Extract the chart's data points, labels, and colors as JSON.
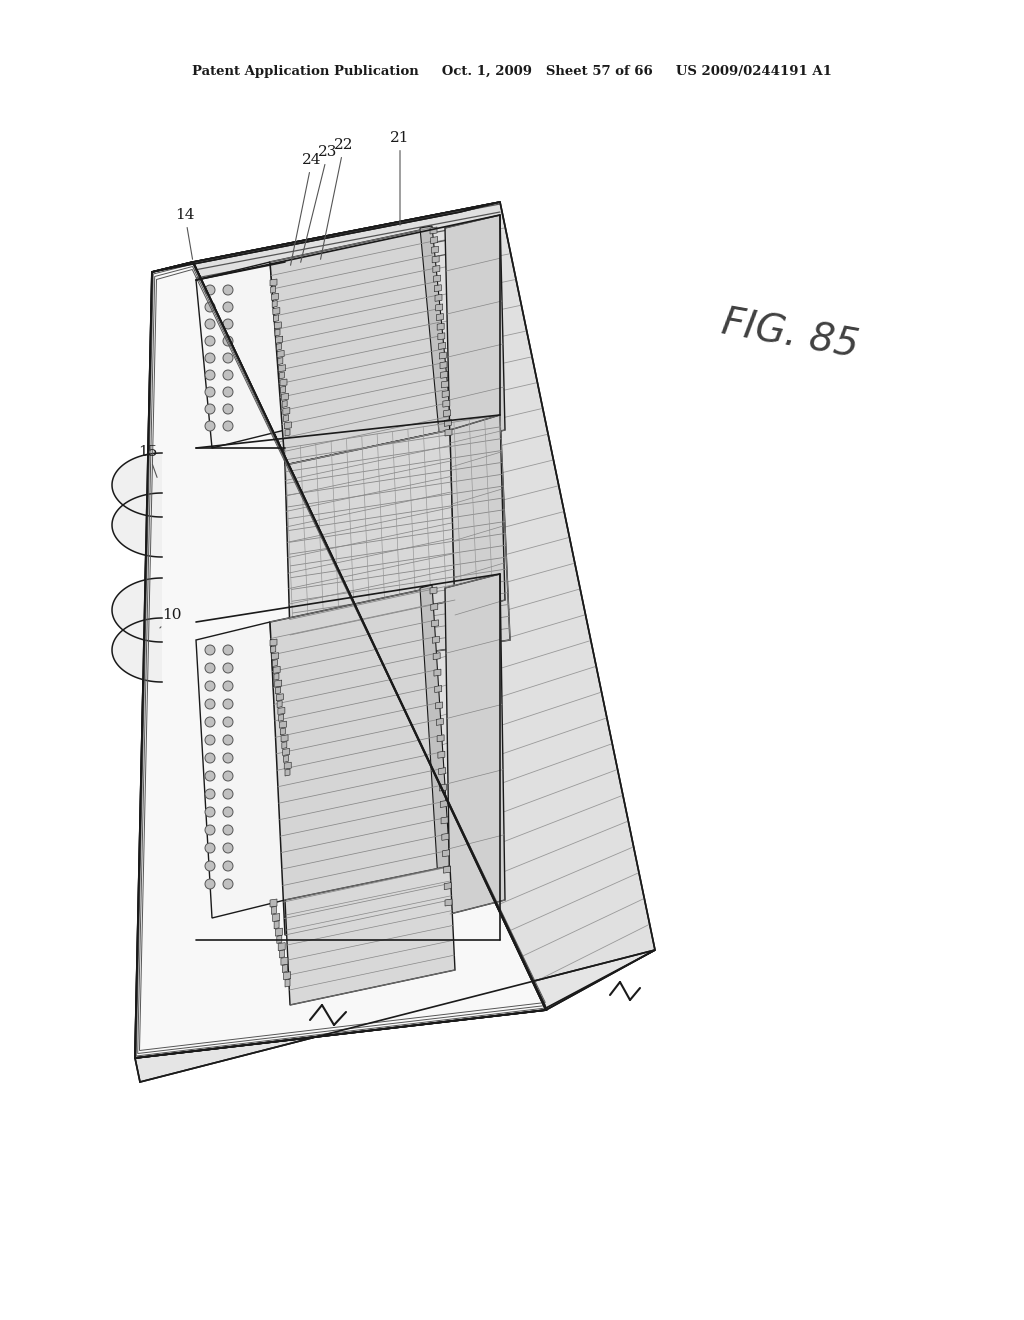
{
  "header": "Patent Application Publication     Oct. 1, 2009   Sheet 57 of 66     US 2009/0244191 A1",
  "fig_label": "FIG. 85",
  "bg": "#ffffff",
  "lc": "#1a1a1a",
  "gray_light": "#f0f0f0",
  "gray_face": "#e8e8e8",
  "gray_hatch": "#d0d0d0",
  "gray_dark": "#b0b0b0",
  "hatch_col": "#777777",
  "dot_col": "#aaaaaa"
}
